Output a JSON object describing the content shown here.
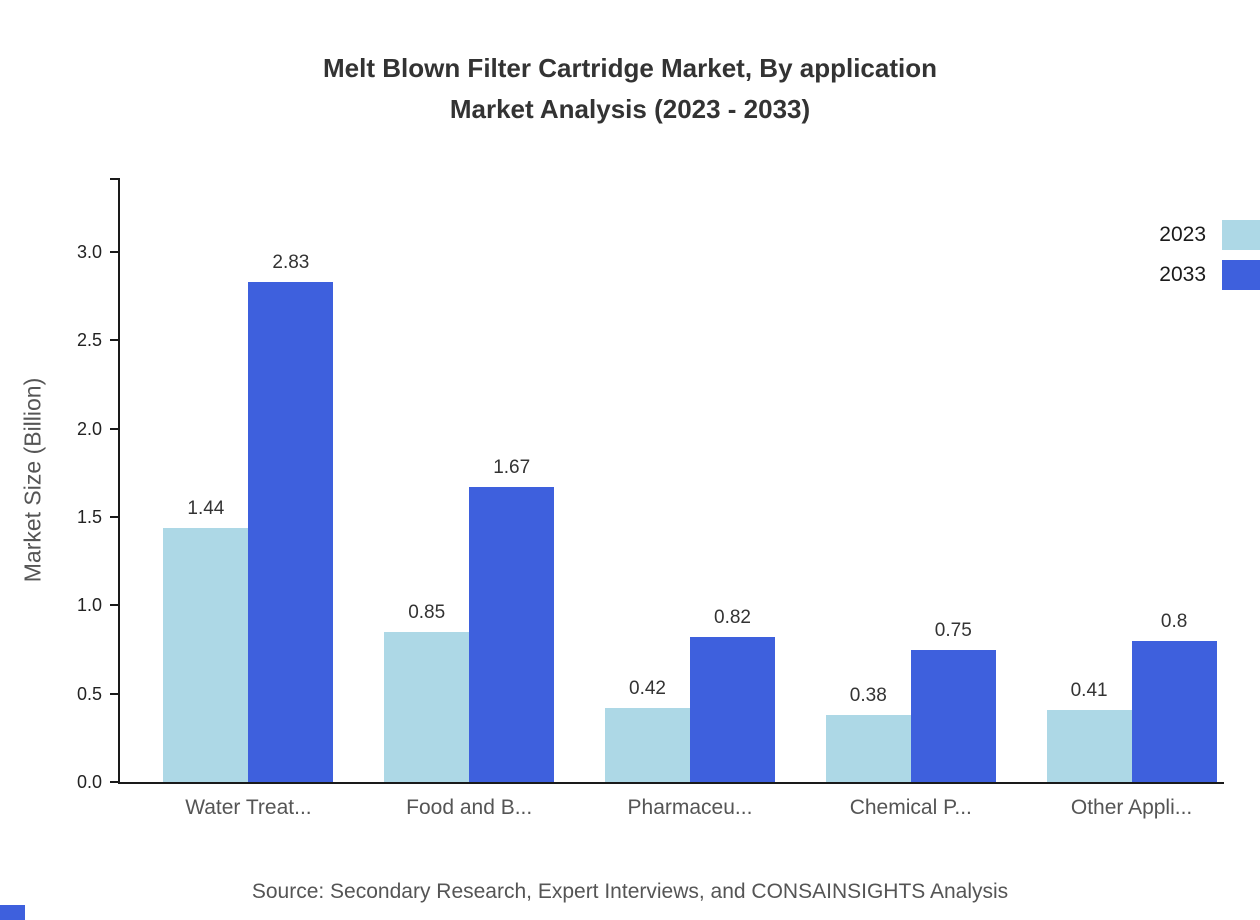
{
  "title": {
    "line1": "Melt Blown Filter Cartridge Market, By application",
    "line2": "Market Analysis (2023 - 2033)"
  },
  "source": "Source: Secondary Research, Expert Interviews, and CONSAINSIGHTS Analysis",
  "colors": {
    "series_2023": "#ADD8E6",
    "series_2033": "#3E60DD",
    "axis": "#1a1a1a"
  },
  "chart_data": {
    "type": "bar",
    "title": "Melt Blown Filter Cartridge Market, By application Market Analysis (2023 - 2033)",
    "categories": [
      "Water Treat...",
      "Food and B...",
      "Pharmaceu...",
      "Chemical P...",
      "Other Appli..."
    ],
    "series": [
      {
        "name": "2023",
        "color": "#ADD8E6",
        "values": [
          1.44,
          0.85,
          0.42,
          0.38,
          0.41
        ],
        "labels": [
          "1.44",
          "0.85",
          "0.42",
          "0.38",
          "0.41"
        ]
      },
      {
        "name": "2033",
        "color": "#3E60DD",
        "values": [
          2.83,
          1.67,
          0.82,
          0.75,
          0.8
        ],
        "labels": [
          "2.83",
          "1.67",
          "0.82",
          "0.75",
          "0.8"
        ]
      }
    ],
    "xlabel": "",
    "ylabel": "Market Size (Billion)",
    "yticks": [
      0.0,
      0.5,
      1.0,
      1.5,
      2.0,
      2.5,
      3.0
    ],
    "ytick_labels": [
      "0.0",
      "0.5",
      "1.0",
      "1.5",
      "2.0",
      "2.5",
      "3.0"
    ],
    "ylim": [
      0,
      3.42
    ],
    "grid": false,
    "legend_position": "top-right"
  }
}
